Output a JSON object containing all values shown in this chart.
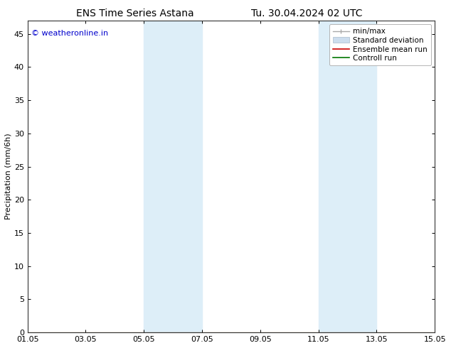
{
  "title_left": "ENS Time Series Astana",
  "title_right": "Tu. 30.04.2024 02 UTC",
  "ylabel": "Precipitation (mm/6h)",
  "bg_color": "#ffffff",
  "plot_bg_color": "#ffffff",
  "ylim": [
    0,
    47
  ],
  "yticks": [
    0,
    5,
    10,
    15,
    20,
    25,
    30,
    35,
    40,
    45
  ],
  "xtick_labels": [
    "01.05",
    "03.05",
    "05.05",
    "07.05",
    "09.05",
    "11.05",
    "13.05",
    "15.05"
  ],
  "xtick_positions": [
    0,
    2,
    4,
    6,
    8,
    10,
    12,
    14
  ],
  "shaded_bands": [
    {
      "xstart": 4.0,
      "xend": 6.0,
      "color": "#ddeef8"
    },
    {
      "xstart": 10.0,
      "xend": 12.0,
      "color": "#ddeef8"
    }
  ],
  "watermark_text": "© weatheronline.in",
  "watermark_color": "#0000cc",
  "watermark_fontsize": 8,
  "title_fontsize": 10,
  "tick_fontsize": 8,
  "ylabel_fontsize": 8,
  "legend_fontsize": 7.5
}
